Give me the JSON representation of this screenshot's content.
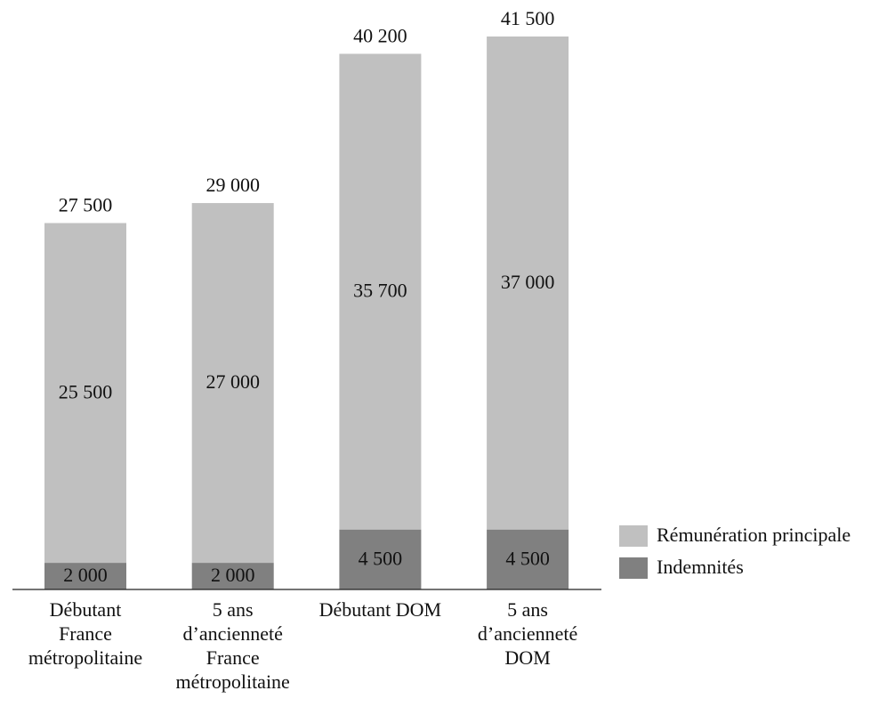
{
  "chart_data": {
    "type": "stacked-bar",
    "categories": [
      "Débutant\nFrance\nmétropolitaine",
      "5 ans\nd’ancienneté\nFrance\nmétropolitaine",
      "Débutant DOM",
      "5 ans\nd’ancienneté\nDOM"
    ],
    "series": [
      {
        "name": "Indemnités",
        "color": "#808080",
        "label_color": "#ffffff",
        "values": [
          2000,
          2000,
          4500,
          4500
        ],
        "value_labels": [
          "2 000",
          "2 000",
          "4 500",
          "4 500"
        ]
      },
      {
        "name": "Rémunération principale",
        "color": "#c0c0c0",
        "label_color": "#111111",
        "values": [
          25500,
          27000,
          35700,
          37000
        ],
        "value_labels": [
          "25 500",
          "27 000",
          "35 700",
          "37 000"
        ]
      }
    ],
    "totals": {
      "values": [
        27500,
        29000,
        40200,
        41500
      ],
      "value_labels": [
        "27 500",
        "29 000",
        "40 200",
        "41 500"
      ]
    },
    "legend": "right"
  }
}
